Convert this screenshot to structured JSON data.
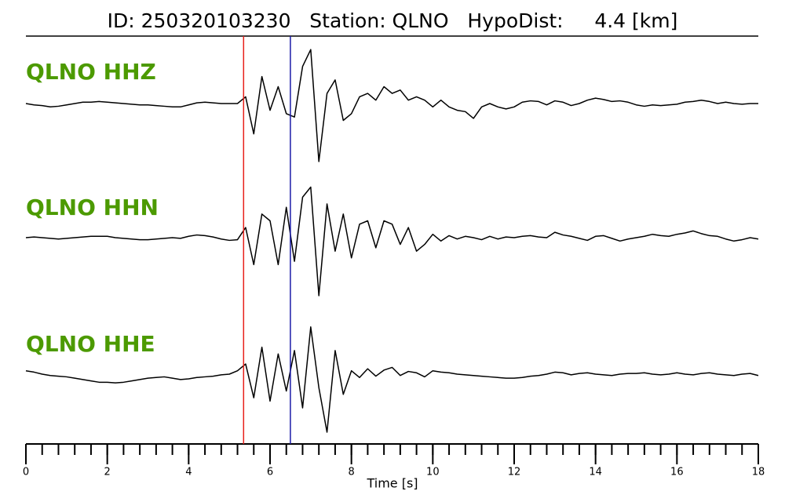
{
  "chart_data": {
    "type": "seismogram",
    "title": "ID: 250320103230   Station: QLNO   HypoDist:     4.4 [km]",
    "xlabel": "Time [s]",
    "xlim": [
      0,
      18
    ],
    "xticks": [
      0,
      2,
      4,
      6,
      8,
      10,
      12,
      14,
      16,
      18
    ],
    "xminorticks": [
      0,
      0.4,
      0.8,
      1.2,
      1.6,
      2,
      2.4,
      2.8,
      3.2,
      3.6,
      4,
      4.4,
      4.8,
      5.2,
      5.6,
      6,
      6.4,
      6.8,
      7.2,
      7.6,
      8,
      8.4,
      8.8,
      9.2,
      9.6,
      10,
      10.4,
      10.8,
      11.2,
      11.6,
      12,
      12.4,
      12.8,
      13.2,
      13.6,
      14,
      14.4,
      14.8,
      15.2,
      15.6,
      16,
      16.4,
      16.8,
      17.2,
      17.6,
      18
    ],
    "picks": [
      {
        "x": 5.35,
        "color": "#e8201a"
      },
      {
        "x": 6.5,
        "color": "#1a1aa8"
      }
    ],
    "x": [
      0,
      0.2,
      0.4,
      0.6,
      0.8,
      1,
      1.2,
      1.4,
      1.6,
      1.8,
      2,
      2.2,
      2.4,
      2.6,
      2.8,
      3,
      3.2,
      3.4,
      3.6,
      3.8,
      4,
      4.2,
      4.4,
      4.6,
      4.8,
      5,
      5.2,
      5.4,
      5.6,
      5.8,
      6,
      6.2,
      6.4,
      6.6,
      6.8,
      7,
      7.2,
      7.4,
      7.6,
      7.8,
      8,
      8.2,
      8.4,
      8.6,
      8.8,
      9,
      9.2,
      9.4,
      9.6,
      9.8,
      10,
      10.2,
      10.4,
      10.6,
      10.8,
      11,
      11.2,
      11.4,
      11.6,
      11.8,
      12,
      12.2,
      12.4,
      12.6,
      12.8,
      13,
      13.2,
      13.4,
      13.6,
      13.8,
      14,
      14.2,
      14.4,
      14.6,
      14.8,
      15,
      15.2,
      15.4,
      15.6,
      15.8,
      16,
      16.2,
      16.4,
      16.6,
      16.8,
      17,
      17.2,
      17.4,
      17.6,
      17.8,
      18
    ],
    "ylim": [
      -100,
      100
    ],
    "series": [
      {
        "name": "QLNO HHZ",
        "color": "#000000",
        "values": [
          0,
          -2,
          -3,
          -5,
          -4,
          -2,
          0,
          2,
          2,
          3,
          2,
          1,
          0,
          -1,
          -2,
          -2,
          -3,
          -4,
          -5,
          -5,
          -2,
          1,
          2,
          1,
          0,
          0,
          0,
          10,
          -45,
          40,
          -10,
          25,
          -15,
          -20,
          55,
          80,
          -86,
          15,
          35,
          -25,
          -15,
          10,
          15,
          5,
          25,
          15,
          20,
          5,
          10,
          5,
          -5,
          5,
          -5,
          -10,
          -12,
          -22,
          -5,
          0,
          -5,
          -8,
          -5,
          2,
          4,
          3,
          -2,
          4,
          2,
          -3,
          0,
          5,
          8,
          6,
          3,
          4,
          2,
          -2,
          -4,
          -2,
          -3,
          -2,
          -1,
          2,
          3,
          5,
          3,
          0,
          2,
          0,
          -1,
          0,
          0
        ]
      },
      {
        "name": "QLNO HHN",
        "color": "#000000",
        "values": [
          0,
          1,
          0,
          -1,
          -2,
          -1,
          0,
          1,
          2,
          2,
          2,
          0,
          -1,
          -2,
          -3,
          -3,
          -2,
          -1,
          0,
          -1,
          2,
          4,
          3,
          1,
          -2,
          -4,
          -3,
          15,
          -40,
          35,
          25,
          -40,
          45,
          -35,
          60,
          75,
          -86,
          50,
          -20,
          35,
          -30,
          20,
          25,
          -15,
          25,
          20,
          -10,
          15,
          -20,
          -10,
          5,
          -5,
          3,
          -2,
          2,
          0,
          -3,
          2,
          -2,
          1,
          0,
          2,
          3,
          1,
          0,
          8,
          4,
          2,
          -1,
          -4,
          2,
          3,
          -1,
          -5,
          -2,
          0,
          2,
          5,
          3,
          2,
          5,
          7,
          10,
          6,
          3,
          2,
          -2,
          -5,
          -3,
          0,
          -2
        ]
      },
      {
        "name": "QLNO HHE",
        "color": "#000000",
        "values": [
          5,
          3,
          0,
          -2,
          -3,
          -4,
          -6,
          -8,
          -10,
          -12,
          -12,
          -13,
          -12,
          -10,
          -8,
          -6,
          -5,
          -4,
          -6,
          -8,
          -7,
          -5,
          -4,
          -3,
          -1,
          0,
          5,
          15,
          -35,
          40,
          -40,
          30,
          -25,
          35,
          -50,
          70,
          -20,
          -86,
          35,
          -30,
          5,
          -5,
          8,
          -3,
          6,
          10,
          -2,
          4,
          2,
          -4,
          5,
          3,
          2,
          0,
          -1,
          -2,
          -3,
          -4,
          -5,
          -6,
          -6,
          -5,
          -3,
          -2,
          0,
          3,
          2,
          -1,
          1,
          2,
          0,
          -1,
          -2,
          0,
          1,
          1,
          2,
          0,
          -1,
          0,
          2,
          0,
          -1,
          1,
          2,
          0,
          -1,
          -2,
          0,
          1,
          -2
        ]
      }
    ]
  }
}
